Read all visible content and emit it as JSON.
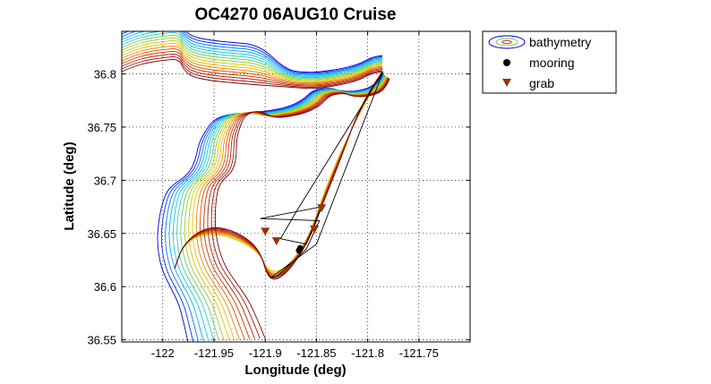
{
  "chart_data": {
    "type": "map",
    "title": "OC4270 06AUG10 Cruise",
    "xlabel": "Longitude (deg)",
    "ylabel": "Latitude (deg)",
    "xlim": [
      -122.04,
      -121.7
    ],
    "ylim": [
      36.548,
      36.84
    ],
    "xticks": [
      -122,
      -121.95,
      -121.9,
      -121.85,
      -121.8,
      -121.75
    ],
    "xtick_labels": [
      "-122",
      "-121.95",
      "-121.9",
      "-121.85",
      "-121.8",
      "-121.75"
    ],
    "yticks": [
      36.55,
      36.6,
      36.65,
      36.7,
      36.75,
      36.8
    ],
    "ytick_labels": [
      "36.55",
      "36.6",
      "36.65",
      "36.7",
      "36.75",
      "36.8"
    ],
    "grid": true,
    "legend_position": "outside-top-right",
    "legend": [
      {
        "label": "bathymetry",
        "marker": "contour"
      },
      {
        "label": "mooring",
        "marker": "circle",
        "color": "#000000"
      },
      {
        "label": "grab",
        "marker": "triangle-down",
        "color": "#993300"
      }
    ],
    "series": [
      {
        "name": "mooring",
        "x": [
          -121.867,
          -121.866
        ],
        "y": [
          36.634,
          36.636
        ]
      },
      {
        "name": "grab",
        "x": [
          -121.845,
          -121.9,
          -121.889,
          -121.852
        ],
        "y": [
          36.674,
          36.652,
          36.643,
          36.654
        ]
      }
    ],
    "ship_track": {
      "x": [
        -121.785,
        -121.87,
        -121.885,
        -121.86,
        -121.845,
        -121.905,
        -121.847,
        -121.86,
        -121.888,
        -121.895,
        -121.85,
        -121.785
      ],
      "y": [
        36.802,
        36.67,
        36.645,
        36.64,
        36.675,
        36.664,
        36.662,
        36.635,
        36.61,
        36.608,
        36.64,
        36.802
      ]
    },
    "bathymetry_colors": [
      "#0000cc",
      "#0033ff",
      "#0077ff",
      "#00aaff",
      "#00ccee",
      "#33ccaa",
      "#66cc66",
      "#99cc33",
      "#cccc00",
      "#eebb00",
      "#ee8800",
      "#dd5500",
      "#cc3300",
      "#aa2200",
      "#991111",
      "#7a0000"
    ]
  }
}
